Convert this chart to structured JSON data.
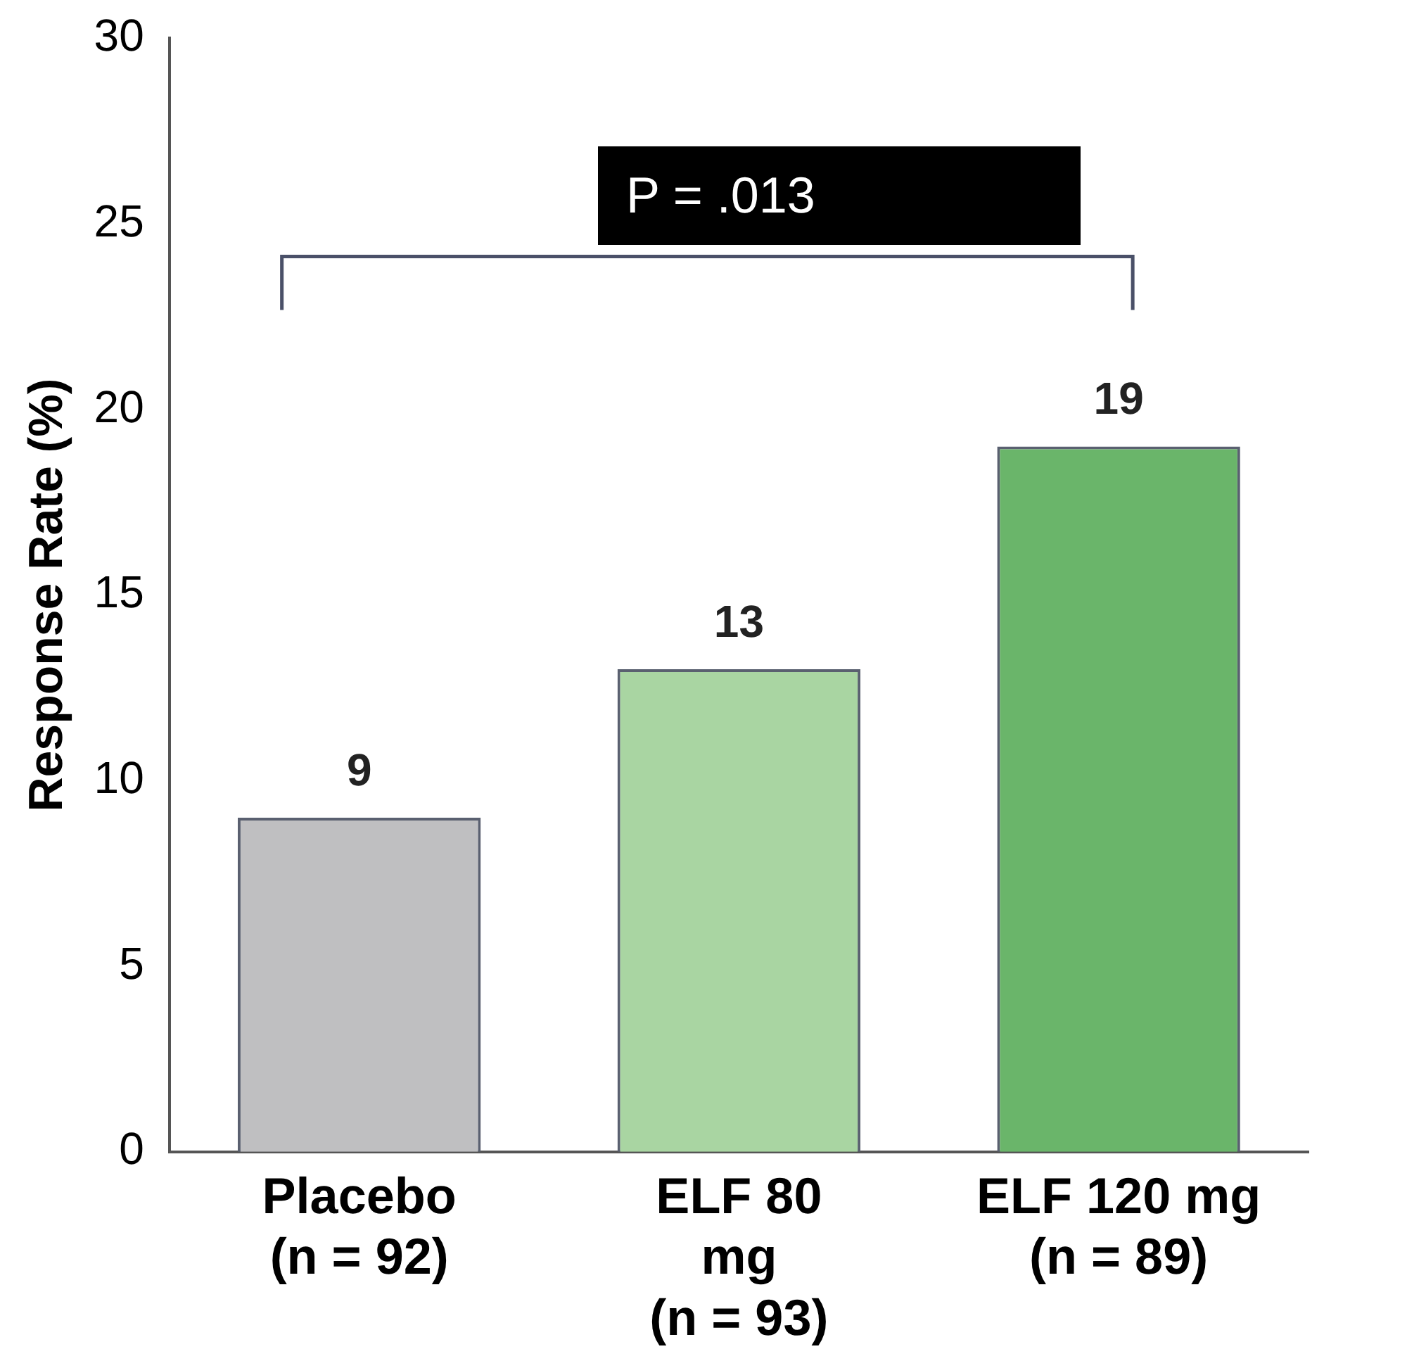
{
  "chart_data": {
    "type": "bar",
    "ylabel": "Response Rate (%)",
    "categories": [
      "Placebo\n(n = 92)",
      "ELF 80\nmg\n(n = 93)",
      "ELF 120 mg\n(n = 89)"
    ],
    "values": [
      9,
      13,
      19
    ],
    "colors": [
      "#bfbfc1",
      "#a9d5a2",
      "#6ab56a"
    ],
    "ylim": [
      0,
      30
    ],
    "yticks": [
      0,
      5,
      10,
      15,
      20,
      25,
      30
    ],
    "grid": false,
    "legend": false,
    "data_labels": true,
    "annotations": [
      "P = .013"
    ]
  }
}
